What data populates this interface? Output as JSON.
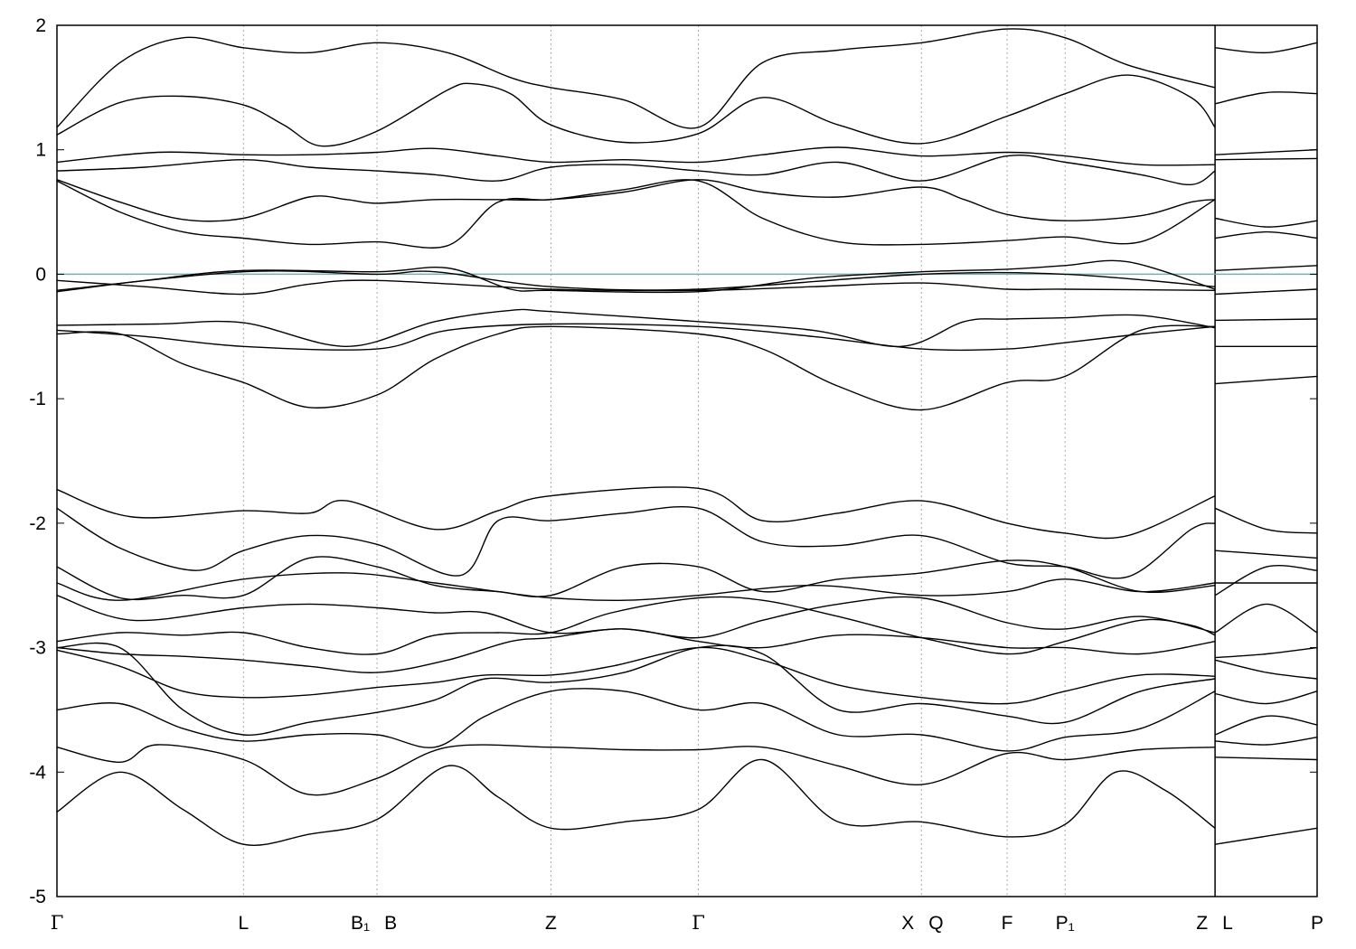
{
  "chart_data": {
    "type": "line",
    "title": "",
    "xlabel": "",
    "ylabel": "",
    "ylim": [
      -5,
      2
    ],
    "y_ticks": [
      "2",
      "1",
      "0",
      "-1",
      "-2",
      "-3",
      "-4",
      "-5"
    ],
    "y_tick_values": [
      2,
      1,
      0,
      -1,
      -2,
      -3,
      -4,
      -5
    ],
    "xlim": [
      0,
      1
    ],
    "k_points": [
      {
        "label": "Γ",
        "x": 0.0
      },
      {
        "label": "L",
        "x": 0.148
      },
      {
        "label": "B₁",
        "x": 0.254
      },
      {
        "label": "B",
        "x": 0.254
      },
      {
        "label": "Z",
        "x": 0.392
      },
      {
        "label": "Γ",
        "x": 0.509
      },
      {
        "label": "X",
        "x": 0.686
      },
      {
        "label": "Q",
        "x": 0.686
      },
      {
        "label": "F",
        "x": 0.754
      },
      {
        "label": "P₁",
        "x": 0.8
      },
      {
        "label": "Z",
        "x": 0.919
      },
      {
        "label": "L",
        "x": 0.919
      },
      {
        "label": "P",
        "x": 1.0
      }
    ],
    "fermi_level": 0,
    "fermi_color": "#5bb8c4",
    "band_color": "#000000",
    "grid": "vertical dotted at k-points",
    "series": [
      {
        "x": [
          0,
          0.05,
          0.1,
          0.148,
          0.2,
          0.254,
          0.31,
          0.36,
          0.392,
          0.45,
          0.509,
          0.56,
          0.62,
          0.686,
          0.754,
          0.8,
          0.85,
          0.919
        ],
        "values": [
          1.18,
          1.7,
          1.9,
          1.82,
          1.78,
          1.86,
          1.78,
          1.58,
          1.5,
          1.4,
          1.18,
          1.7,
          1.8,
          1.86,
          1.97,
          1.9,
          1.68,
          1.5
        ]
      },
      {
        "x": [
          0.919,
          0.96,
          1.0
        ],
        "values": [
          1.82,
          1.78,
          1.86
        ]
      },
      {
        "x": [
          0,
          0.05,
          0.1,
          0.148,
          0.18,
          0.21,
          0.254,
          0.31,
          0.33,
          0.36,
          0.392,
          0.45,
          0.509,
          0.56,
          0.62,
          0.686,
          0.754,
          0.8,
          0.85,
          0.9,
          0.919
        ],
        "values": [
          1.12,
          1.38,
          1.43,
          1.36,
          1.2,
          1.03,
          1.15,
          1.48,
          1.53,
          1.45,
          1.2,
          1.06,
          1.13,
          1.42,
          1.2,
          1.05,
          1.27,
          1.45,
          1.6,
          1.42,
          1.18
        ]
      },
      {
        "x": [
          0.919,
          0.96,
          1.0
        ],
        "values": [
          1.37,
          1.46,
          1.45
        ]
      },
      {
        "x": [
          0,
          0.08,
          0.148,
          0.2,
          0.254,
          0.3,
          0.35,
          0.392,
          0.45,
          0.509,
          0.56,
          0.62,
          0.686,
          0.754,
          0.8,
          0.86,
          0.919
        ],
        "values": [
          0.9,
          0.98,
          0.96,
          0.96,
          0.98,
          1.01,
          0.95,
          0.9,
          0.92,
          0.9,
          0.96,
          1.02,
          0.95,
          0.98,
          0.95,
          0.88,
          0.88
        ]
      },
      {
        "x": [
          0.919,
          1.0
        ],
        "values": [
          0.96,
          1.0
        ]
      },
      {
        "x": [
          0,
          0.07,
          0.148,
          0.2,
          0.254,
          0.3,
          0.35,
          0.392,
          0.45,
          0.509,
          0.56,
          0.62,
          0.686,
          0.754,
          0.8,
          0.86,
          0.9,
          0.919
        ],
        "values": [
          0.83,
          0.86,
          0.92,
          0.86,
          0.83,
          0.8,
          0.75,
          0.86,
          0.88,
          0.83,
          0.8,
          0.9,
          0.75,
          0.95,
          0.9,
          0.8,
          0.72,
          0.83
        ]
      },
      {
        "x": [
          0.919,
          1.0
        ],
        "values": [
          0.92,
          0.93
        ]
      },
      {
        "x": [
          0,
          0.05,
          0.1,
          0.148,
          0.2,
          0.23,
          0.254,
          0.3,
          0.35,
          0.392,
          0.45,
          0.509,
          0.56,
          0.62,
          0.686,
          0.72,
          0.754,
          0.8,
          0.86,
          0.9,
          0.919
        ],
        "values": [
          0.76,
          0.58,
          0.44,
          0.45,
          0.62,
          0.6,
          0.57,
          0.6,
          0.6,
          0.6,
          0.66,
          0.76,
          0.66,
          0.62,
          0.7,
          0.6,
          0.48,
          0.43,
          0.47,
          0.58,
          0.6
        ]
      },
      {
        "x": [
          0.919,
          0.96,
          1.0
        ],
        "values": [
          0.45,
          0.38,
          0.43
        ]
      },
      {
        "x": [
          0,
          0.05,
          0.1,
          0.148,
          0.2,
          0.254,
          0.31,
          0.35,
          0.392,
          0.45,
          0.509,
          0.56,
          0.62,
          0.686,
          0.754,
          0.8,
          0.86,
          0.919
        ],
        "values": [
          0.75,
          0.5,
          0.34,
          0.29,
          0.24,
          0.26,
          0.23,
          0.58,
          0.6,
          0.68,
          0.75,
          0.45,
          0.26,
          0.24,
          0.27,
          0.3,
          0.26,
          0.6
        ]
      },
      {
        "x": [
          0.919,
          0.96,
          1.0
        ],
        "values": [
          0.29,
          0.34,
          0.29
        ]
      },
      {
        "x": [
          0,
          0.07,
          0.148,
          0.254,
          0.31,
          0.36,
          0.392,
          0.509,
          0.6,
          0.686,
          0.754,
          0.8,
          0.85,
          0.919
        ],
        "values": [
          -0.14,
          -0.05,
          0.03,
          0.02,
          0.05,
          -0.12,
          -0.13,
          -0.14,
          -0.03,
          0.02,
          0.04,
          0.07,
          0.1,
          -0.12
        ]
      },
      {
        "x": [
          0.919,
          1.0
        ],
        "values": [
          0.03,
          0.07
        ]
      },
      {
        "x": [
          0,
          0.148,
          0.254,
          0.3,
          0.392,
          0.509,
          0.686,
          0.8,
          0.919
        ],
        "values": [
          -0.13,
          0.02,
          0.0,
          0.02,
          -0.1,
          -0.12,
          0.0,
          0.0,
          -0.1
        ]
      },
      {
        "x": [
          0,
          0.07,
          0.148,
          0.2,
          0.254,
          0.392,
          0.509,
          0.6,
          0.686,
          0.754,
          0.8,
          0.919
        ],
        "values": [
          -0.05,
          -0.1,
          -0.16,
          -0.08,
          -0.05,
          -0.12,
          -0.13,
          -0.1,
          -0.07,
          -0.12,
          -0.12,
          -0.13
        ]
      },
      {
        "x": [
          0.919,
          1.0
        ],
        "values": [
          -0.16,
          -0.12
        ]
      },
      {
        "x": [
          0,
          0.08,
          0.148,
          0.23,
          0.3,
          0.36,
          0.392,
          0.509,
          0.6,
          0.67,
          0.72,
          0.754,
          0.8,
          0.86,
          0.919
        ],
        "values": [
          -0.41,
          -0.4,
          -0.39,
          -0.58,
          -0.38,
          -0.29,
          -0.3,
          -0.38,
          -0.45,
          -0.58,
          -0.38,
          -0.36,
          -0.35,
          -0.33,
          -0.43
        ]
      },
      {
        "x": [
          0.919,
          1.0
        ],
        "values": [
          -0.37,
          -0.36
        ]
      },
      {
        "x": [
          0,
          0.07,
          0.148,
          0.254,
          0.31,
          0.392,
          0.509,
          0.6,
          0.686,
          0.754,
          0.8,
          0.86,
          0.919
        ],
        "values": [
          -0.45,
          -0.5,
          -0.58,
          -0.6,
          -0.45,
          -0.4,
          -0.42,
          -0.5,
          -0.6,
          -0.6,
          -0.55,
          -0.48,
          -0.42
        ]
      },
      {
        "x": [
          0.919,
          1.0
        ],
        "values": [
          -0.58,
          -0.58
        ]
      },
      {
        "x": [
          0,
          0.05,
          0.1,
          0.148,
          0.2,
          0.254,
          0.3,
          0.35,
          0.392,
          0.509,
          0.56,
          0.62,
          0.686,
          0.754,
          0.8,
          0.86,
          0.919
        ],
        "values": [
          -0.48,
          -0.48,
          -0.72,
          -0.87,
          -1.07,
          -0.97,
          -0.68,
          -0.48,
          -0.42,
          -0.48,
          -0.6,
          -0.9,
          -1.09,
          -0.87,
          -0.82,
          -0.45,
          -0.42
        ]
      },
      {
        "x": [
          0.919,
          1.0
        ],
        "values": [
          -0.88,
          -0.82
        ]
      },
      {
        "x": [
          0,
          0.06,
          0.148,
          0.2,
          0.23,
          0.3,
          0.35,
          0.392,
          0.509,
          0.56,
          0.62,
          0.686,
          0.754,
          0.8,
          0.85,
          0.919
        ],
        "values": [
          -1.73,
          -1.95,
          -1.9,
          -1.92,
          -1.82,
          -2.05,
          -1.9,
          -1.78,
          -1.72,
          -1.98,
          -1.92,
          -1.82,
          -2.0,
          -2.08,
          -2.1,
          -1.78
        ]
      },
      {
        "x": [
          0.919,
          0.96,
          1.0
        ],
        "values": [
          -1.88,
          -2.05,
          -2.08
        ]
      },
      {
        "x": [
          0,
          0.05,
          0.11,
          0.148,
          0.2,
          0.254,
          0.32,
          0.35,
          0.392,
          0.45,
          0.509,
          0.56,
          0.62,
          0.686,
          0.754,
          0.8,
          0.85,
          0.9,
          0.919
        ],
        "values": [
          -1.88,
          -2.2,
          -2.38,
          -2.22,
          -2.1,
          -2.17,
          -2.42,
          -1.98,
          -1.98,
          -1.92,
          -1.88,
          -2.15,
          -2.18,
          -2.1,
          -2.32,
          -2.35,
          -2.43,
          -2.05,
          -2.0
        ]
      },
      {
        "x": [
          0.919,
          0.96,
          1.0
        ],
        "values": [
          -2.22,
          -2.25,
          -2.28
        ]
      },
      {
        "x": [
          0,
          0.05,
          0.1,
          0.148,
          0.2,
          0.254,
          0.3,
          0.35,
          0.392,
          0.45,
          0.509,
          0.56,
          0.62,
          0.686,
          0.754,
          0.8,
          0.86,
          0.919
        ],
        "values": [
          -2.35,
          -2.6,
          -2.58,
          -2.58,
          -2.28,
          -2.35,
          -2.5,
          -2.55,
          -2.58,
          -2.35,
          -2.35,
          -2.55,
          -2.45,
          -2.4,
          -2.3,
          -2.35,
          -2.55,
          -2.5
        ]
      },
      {
        "x": [
          0.919,
          0.96,
          1.0
        ],
        "values": [
          -2.58,
          -2.35,
          -2.38
        ]
      },
      {
        "x": [
          0,
          0.05,
          0.148,
          0.23,
          0.3,
          0.35,
          0.392,
          0.45,
          0.509,
          0.6,
          0.686,
          0.754,
          0.8,
          0.86,
          0.919
        ],
        "values": [
          -2.48,
          -2.62,
          -2.45,
          -2.4,
          -2.48,
          -2.55,
          -2.6,
          -2.62,
          -2.58,
          -2.5,
          -2.58,
          -2.55,
          -2.45,
          -2.55,
          -2.48
        ]
      },
      {
        "x": [
          0.919,
          0.96,
          1.0
        ],
        "values": [
          -2.48,
          -2.48,
          -2.48
        ]
      },
      {
        "x": [
          0,
          0.06,
          0.148,
          0.2,
          0.254,
          0.3,
          0.34,
          0.392,
          0.45,
          0.509,
          0.56,
          0.62,
          0.686,
          0.754,
          0.8,
          0.86,
          0.919
        ],
        "values": [
          -2.58,
          -2.78,
          -2.68,
          -2.65,
          -2.68,
          -2.72,
          -2.72,
          -2.88,
          -2.85,
          -2.92,
          -2.78,
          -2.65,
          -2.6,
          -2.8,
          -2.85,
          -2.75,
          -2.88
        ]
      },
      {
        "x": [
          0.919,
          0.96,
          1.0
        ],
        "values": [
          -2.88,
          -2.65,
          -2.88
        ]
      },
      {
        "x": [
          0,
          0.05,
          0.1,
          0.148,
          0.2,
          0.254,
          0.3,
          0.35,
          0.392,
          0.44,
          0.509,
          0.56,
          0.62,
          0.686,
          0.754,
          0.8,
          0.86,
          0.9,
          0.919
        ],
        "values": [
          -2.95,
          -2.88,
          -2.9,
          -2.88,
          -3.0,
          -3.05,
          -2.9,
          -2.88,
          -2.88,
          -2.72,
          -2.6,
          -2.62,
          -2.75,
          -2.92,
          -3.05,
          -2.95,
          -2.78,
          -2.82,
          -2.9
        ]
      },
      {
        "x": [
          0.919,
          0.96,
          1.0
        ],
        "values": [
          -3.08,
          -3.05,
          -3.0
        ]
      },
      {
        "x": [
          0,
          0.05,
          0.1,
          0.148,
          0.2,
          0.254,
          0.31,
          0.36,
          0.392,
          0.45,
          0.509,
          0.56,
          0.62,
          0.686,
          0.754,
          0.8,
          0.86,
          0.919
        ],
        "values": [
          -3.0,
          -3.05,
          -3.07,
          -3.1,
          -3.15,
          -3.2,
          -3.1,
          -2.95,
          -2.92,
          -2.85,
          -2.95,
          -3.0,
          -2.9,
          -2.92,
          -3.0,
          -3.0,
          -3.05,
          -2.95
        ]
      },
      {
        "x": [
          0.919,
          0.96,
          1.0
        ],
        "values": [
          -3.1,
          -3.2,
          -3.25
        ]
      },
      {
        "x": [
          0,
          0.05,
          0.1,
          0.148,
          0.2,
          0.254,
          0.3,
          0.34,
          0.392,
          0.44,
          0.509,
          0.56,
          0.62,
          0.686,
          0.754,
          0.8,
          0.86,
          0.919
        ],
        "values": [
          -3.02,
          -3.15,
          -3.35,
          -3.4,
          -3.38,
          -3.32,
          -3.28,
          -3.22,
          -3.22,
          -3.15,
          -3.0,
          -3.1,
          -3.3,
          -3.4,
          -3.45,
          -3.35,
          -3.22,
          -3.23
        ]
      },
      {
        "x": [
          0.919,
          0.96,
          1.0
        ],
        "values": [
          -3.37,
          -3.45,
          -3.35
        ]
      },
      {
        "x": [
          0,
          0.05,
          0.1,
          0.148,
          0.2,
          0.254,
          0.3,
          0.34,
          0.392,
          0.45,
          0.509,
          0.56,
          0.62,
          0.686,
          0.754,
          0.8,
          0.86,
          0.919
        ],
        "values": [
          -3.0,
          -3.0,
          -3.5,
          -3.7,
          -3.6,
          -3.52,
          -3.42,
          -3.25,
          -3.28,
          -3.2,
          -3.0,
          -3.05,
          -3.5,
          -3.45,
          -3.55,
          -3.6,
          -3.35,
          -3.25
        ]
      },
      {
        "x": [
          0.919,
          0.96,
          1.0
        ],
        "values": [
          -3.7,
          -3.55,
          -3.62
        ]
      },
      {
        "x": [
          0,
          0.05,
          0.1,
          0.148,
          0.2,
          0.254,
          0.3,
          0.34,
          0.392,
          0.45,
          0.509,
          0.56,
          0.62,
          0.686,
          0.754,
          0.8,
          0.86,
          0.919
        ],
        "values": [
          -3.5,
          -3.45,
          -3.65,
          -3.75,
          -3.7,
          -3.7,
          -3.8,
          -3.55,
          -3.35,
          -3.35,
          -3.5,
          -3.45,
          -3.7,
          -3.7,
          -3.83,
          -3.72,
          -3.65,
          -3.35
        ]
      },
      {
        "x": [
          0.919,
          0.96,
          1.0
        ],
        "values": [
          -3.75,
          -3.78,
          -3.72
        ]
      },
      {
        "x": [
          0,
          0.05,
          0.08,
          0.148,
          0.2,
          0.254,
          0.31,
          0.392,
          0.45,
          0.509,
          0.56,
          0.62,
          0.686,
          0.754,
          0.8,
          0.86,
          0.919
        ],
        "values": [
          -3.8,
          -3.92,
          -3.78,
          -3.9,
          -4.18,
          -4.05,
          -3.8,
          -3.8,
          -3.82,
          -3.82,
          -3.8,
          -3.95,
          -4.1,
          -3.85,
          -3.9,
          -3.82,
          -3.8
        ]
      },
      {
        "x": [
          0.919,
          1.0
        ],
        "values": [
          -3.88,
          -3.9
        ]
      },
      {
        "x": [
          0,
          0.05,
          0.1,
          0.148,
          0.2,
          0.254,
          0.31,
          0.35,
          0.392,
          0.45,
          0.509,
          0.56,
          0.62,
          0.686,
          0.754,
          0.8,
          0.84,
          0.88,
          0.919
        ],
        "values": [
          -4.32,
          -4.0,
          -4.3,
          -4.58,
          -4.5,
          -4.38,
          -3.95,
          -4.2,
          -4.45,
          -4.4,
          -4.3,
          -3.9,
          -4.4,
          -4.4,
          -4.52,
          -4.42,
          -4.0,
          -4.15,
          -4.45
        ]
      },
      {
        "x": [
          0.919,
          1.0
        ],
        "values": [
          -4.58,
          -4.45
        ]
      }
    ]
  }
}
